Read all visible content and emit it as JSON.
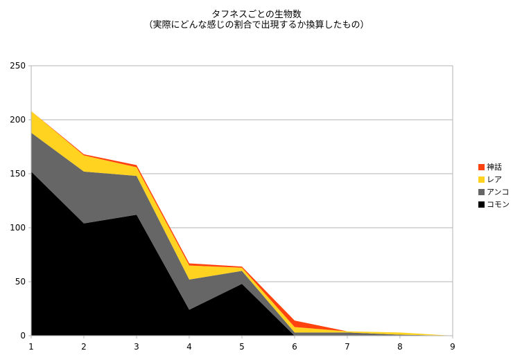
{
  "chart_data": {
    "type": "area",
    "stacked": true,
    "title": "タフネスごとの生物数",
    "subtitle": "（実際にどんな感じの割合で出現するか換算したもの）",
    "xlabel": "",
    "ylabel": "",
    "x": [
      1,
      2,
      3,
      4,
      5,
      6,
      7,
      8,
      9
    ],
    "ylim": [
      0,
      250
    ],
    "yticks": [
      0,
      50,
      100,
      150,
      200,
      250
    ],
    "grid": true,
    "legend_position": "right",
    "series": [
      {
        "name": "コモン",
        "color": "#000000",
        "values": [
          152,
          104,
          112,
          24,
          48,
          0,
          0,
          0,
          0
        ]
      },
      {
        "name": "アンコ",
        "color": "#666666",
        "values": [
          36,
          48,
          36,
          28,
          12,
          3,
          3,
          1,
          0
        ]
      },
      {
        "name": "レア",
        "color": "#ffd320",
        "values": [
          20,
          15,
          8,
          13,
          3,
          5,
          1,
          2,
          0
        ]
      },
      {
        "name": "神話",
        "color": "#ff420e",
        "values": [
          0,
          1,
          2,
          2,
          1,
          6,
          0,
          0,
          0
        ]
      }
    ]
  }
}
